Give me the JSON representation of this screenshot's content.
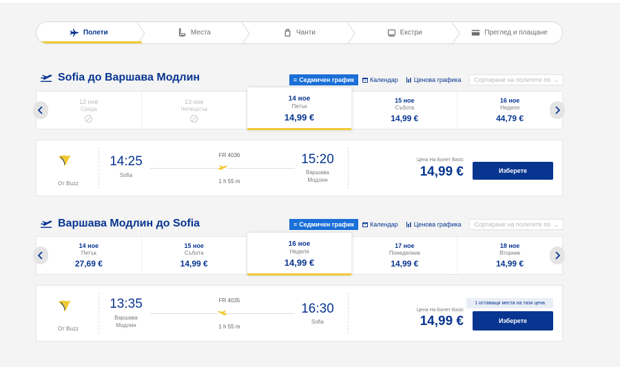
{
  "steps": [
    {
      "label": "Полети",
      "icon": "plane-icon",
      "active": true
    },
    {
      "label": "Места",
      "icon": "seat-icon",
      "active": false
    },
    {
      "label": "Чанти",
      "icon": "bag-icon",
      "active": false
    },
    {
      "label": "Екстри",
      "icon": "car-icon",
      "active": false
    },
    {
      "label": "Преглед и плащане",
      "icon": "card-icon",
      "active": false
    }
  ],
  "view_tabs": {
    "weekly": "Седмичен график",
    "calendar": "Календар",
    "price_chart": "Ценова графика",
    "sort_placeholder": "Сортиране на полетите по"
  },
  "outbound": {
    "title": "Sofia до Варшава Модлин",
    "dates": [
      {
        "date": "12 ное",
        "weekday": "Сряда",
        "price": "",
        "available": false
      },
      {
        "date": "13 ное",
        "weekday": "Четвъртък",
        "price": "",
        "available": false
      },
      {
        "date": "14 ное",
        "weekday": "Петък",
        "price": "14,99 €",
        "available": true,
        "selected": true
      },
      {
        "date": "15 ное",
        "weekday": "Събота",
        "price": "14,99 €",
        "available": true
      },
      {
        "date": "16 ное",
        "weekday": "Неделя",
        "price": "44,79 €",
        "available": true
      }
    ],
    "flight": {
      "operator": "От Buzz",
      "dep_time": "14:25",
      "dep_city": "Sofia",
      "flight_no": "FR 4036",
      "duration": "1 h 55 m",
      "arr_time": "15:20",
      "arr_city_line1": "Варшава",
      "arr_city_line2": "Модлин",
      "fare_label": "Цена На Билет Basic",
      "price": "14,99 €",
      "select_label": "Изберете"
    }
  },
  "inbound": {
    "title": "Варшава Модлин до Sofia",
    "dates": [
      {
        "date": "14 ное",
        "weekday": "Петък",
        "price": "27,69 €",
        "available": true
      },
      {
        "date": "15 ное",
        "weekday": "Събота",
        "price": "14,99 €",
        "available": true
      },
      {
        "date": "16 ное",
        "weekday": "Неделя",
        "price": "14,99 €",
        "available": true,
        "selected": true
      },
      {
        "date": "17 ное",
        "weekday": "Понеделник",
        "price": "14,99 €",
        "available": true
      },
      {
        "date": "18 ное",
        "weekday": "Вторник",
        "price": "14,99 €",
        "available": true
      }
    ],
    "flight": {
      "operator": "От Buzz",
      "dep_time": "13:35",
      "dep_city_line1": "Варшава",
      "dep_city_line2": "Модлин",
      "flight_no": "FR 4035",
      "duration": "1 h 55 m",
      "arr_time": "16:30",
      "arr_city": "Sofia",
      "seats_badge": "1 оставащи места на тази цена",
      "fare_label": "Цена На Билет Basic",
      "price": "14,99 €",
      "select_label": "Изберете"
    }
  },
  "colors": {
    "brand": "#073590",
    "accent": "#f1c933",
    "active_tab": "#1a6fd8"
  }
}
